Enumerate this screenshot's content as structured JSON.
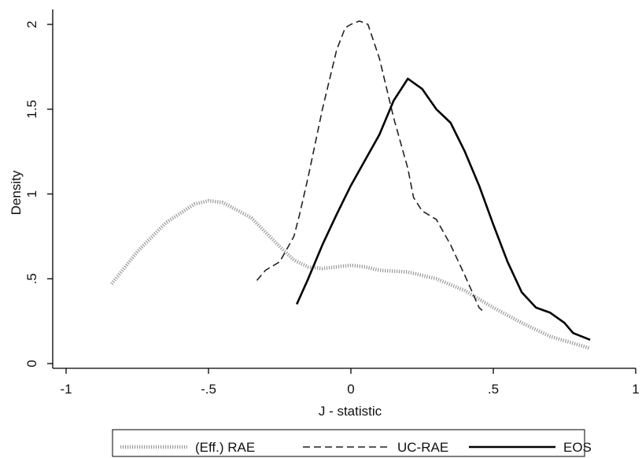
{
  "chart_data": {
    "type": "line",
    "xlabel": "J - statistic",
    "ylabel": "Density",
    "xlim": [
      -1,
      1
    ],
    "ylim": [
      0,
      2
    ],
    "x_ticks": [
      "-1",
      "-.5",
      "0",
      ".5",
      "1"
    ],
    "y_ticks": [
      "0",
      ".5",
      "1",
      "1.5",
      "2"
    ],
    "grid": false,
    "legend_position": "bottom",
    "series": [
      {
        "name": "(Eff.) RAE",
        "style": "dotted",
        "color": "#999999",
        "points": [
          [
            -0.84,
            0.47
          ],
          [
            -0.75,
            0.66
          ],
          [
            -0.65,
            0.83
          ],
          [
            -0.55,
            0.94
          ],
          [
            -0.5,
            0.96
          ],
          [
            -0.45,
            0.95
          ],
          [
            -0.35,
            0.86
          ],
          [
            -0.25,
            0.69
          ],
          [
            -0.2,
            0.61
          ],
          [
            -0.15,
            0.57
          ],
          [
            -0.1,
            0.56
          ],
          [
            0.0,
            0.58
          ],
          [
            0.05,
            0.57
          ],
          [
            0.1,
            0.55
          ],
          [
            0.2,
            0.54
          ],
          [
            0.3,
            0.5
          ],
          [
            0.4,
            0.43
          ],
          [
            0.5,
            0.33
          ],
          [
            0.6,
            0.24
          ],
          [
            0.7,
            0.16
          ],
          [
            0.8,
            0.11
          ],
          [
            0.84,
            0.09
          ]
        ]
      },
      {
        "name": "UC-RAE",
        "style": "dashed",
        "color": "#222222",
        "points": [
          [
            -0.33,
            0.49
          ],
          [
            -0.3,
            0.55
          ],
          [
            -0.25,
            0.6
          ],
          [
            -0.2,
            0.75
          ],
          [
            -0.18,
            0.88
          ],
          [
            -0.15,
            1.1
          ],
          [
            -0.1,
            1.5
          ],
          [
            -0.05,
            1.85
          ],
          [
            -0.02,
            1.98
          ],
          [
            0.0,
            2.0
          ],
          [
            0.03,
            2.02
          ],
          [
            0.06,
            2.0
          ],
          [
            0.1,
            1.8
          ],
          [
            0.15,
            1.45
          ],
          [
            0.2,
            1.15
          ],
          [
            0.22,
            0.98
          ],
          [
            0.25,
            0.9
          ],
          [
            0.3,
            0.85
          ],
          [
            0.35,
            0.7
          ],
          [
            0.4,
            0.52
          ],
          [
            0.45,
            0.33
          ],
          [
            0.47,
            0.3
          ]
        ]
      },
      {
        "name": "EOS",
        "style": "solid",
        "color": "#000000",
        "points": [
          [
            -0.19,
            0.35
          ],
          [
            -0.15,
            0.5
          ],
          [
            -0.1,
            0.7
          ],
          [
            -0.05,
            0.88
          ],
          [
            0.0,
            1.05
          ],
          [
            0.05,
            1.2
          ],
          [
            0.1,
            1.35
          ],
          [
            0.15,
            1.55
          ],
          [
            0.2,
            1.68
          ],
          [
            0.25,
            1.62
          ],
          [
            0.3,
            1.5
          ],
          [
            0.35,
            1.42
          ],
          [
            0.4,
            1.25
          ],
          [
            0.45,
            1.05
          ],
          [
            0.5,
            0.82
          ],
          [
            0.55,
            0.6
          ],
          [
            0.6,
            0.42
          ],
          [
            0.65,
            0.33
          ],
          [
            0.7,
            0.3
          ],
          [
            0.75,
            0.24
          ],
          [
            0.78,
            0.18
          ],
          [
            0.84,
            0.14
          ]
        ]
      }
    ]
  }
}
